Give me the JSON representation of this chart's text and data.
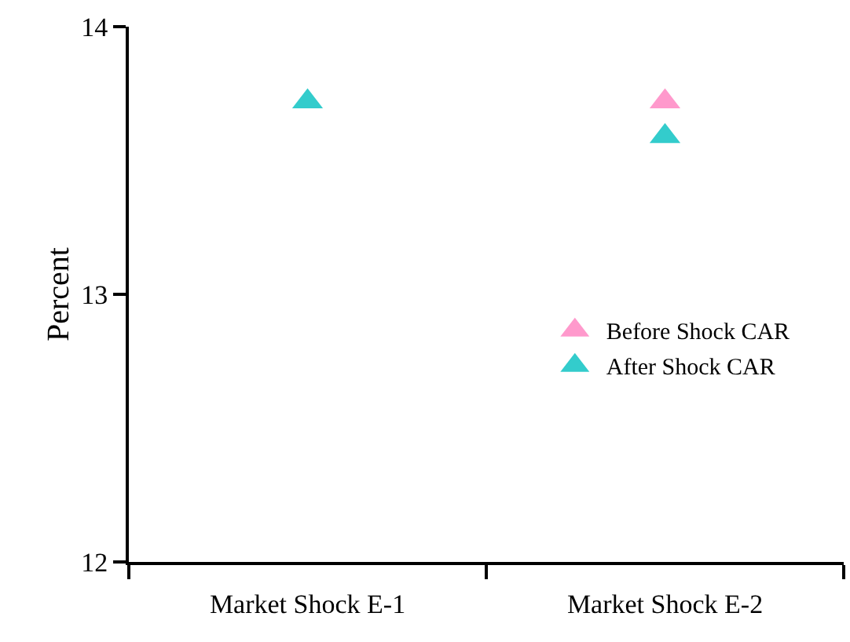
{
  "chart_data": {
    "type": "scatter",
    "ylabel": "Percent",
    "categories": [
      "Market Shock E-1",
      "Market Shock E-2"
    ],
    "series": [
      {
        "name": "Before Shock CAR",
        "color": "#ff99cc",
        "values": [
          null,
          13.72
        ]
      },
      {
        "name": "After Shock CAR",
        "color": "#33cccc",
        "values": [
          13.72,
          13.59
        ]
      }
    ],
    "ylim": [
      12,
      14
    ],
    "yticks": [
      12,
      13,
      14
    ],
    "grid": false,
    "legend": "right",
    "marker": "triangle"
  }
}
